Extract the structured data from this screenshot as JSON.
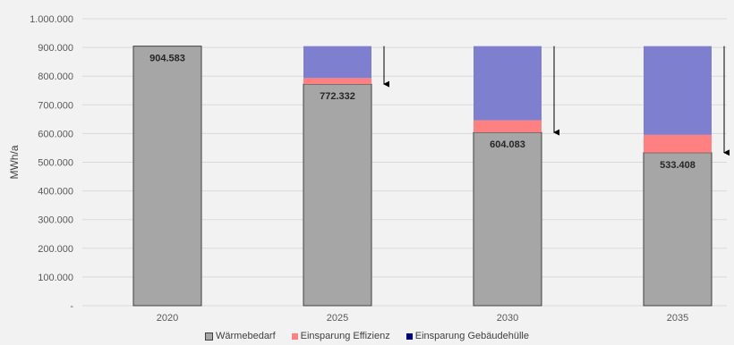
{
  "chart_data": {
    "type": "bar",
    "stacked": true,
    "categories": [
      "2020",
      "2025",
      "2030",
      "2035"
    ],
    "series": [
      {
        "name": "Wärmebedarf",
        "color": "#a6a6a6",
        "values": [
          904583,
          772332,
          604083,
          533408
        ]
      },
      {
        "name": "Einsparung Effizienz",
        "color": "#ff8080",
        "values": [
          0,
          21000,
          42000,
          62000
        ]
      },
      {
        "name": "Einsparung Gebäudehülle",
        "color": "#7f7fcf",
        "legend_color": "#00007f",
        "values": [
          0,
          111251,
          258500,
          309175
        ]
      }
    ],
    "data_labels": [
      "904.583",
      "772.332",
      "604.083",
      "533.408"
    ],
    "ylabel": "MWh/a",
    "ylim": [
      0,
      1000000
    ],
    "yticks": [
      0,
      100000,
      200000,
      300000,
      400000,
      500000,
      600000,
      700000,
      800000,
      900000,
      1000000
    ],
    "ytick_labels": [
      "-",
      "100.000",
      "200.000",
      "300.000",
      "400.000",
      "500.000",
      "600.000",
      "700.000",
      "800.000",
      "900.000",
      "1.000.000"
    ],
    "arrows": [
      {
        "category": "2025",
        "from": 904583,
        "to": 772332
      },
      {
        "category": "2030",
        "from": 904583,
        "to": 604083
      },
      {
        "category": "2035",
        "from": 904583,
        "to": 533408
      }
    ],
    "grid": true,
    "legend_position": "bottom"
  }
}
